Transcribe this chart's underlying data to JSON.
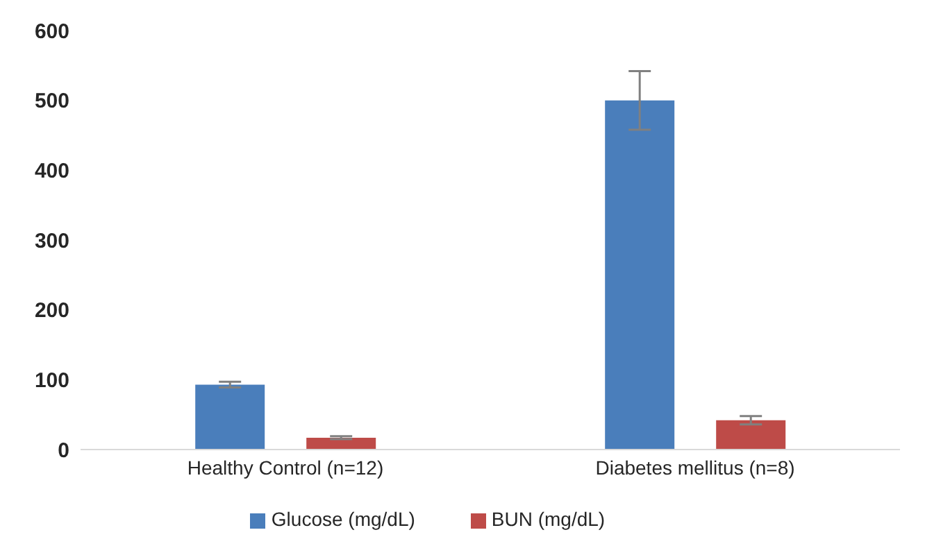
{
  "chart_data": {
    "type": "bar",
    "categories": [
      "Healthy Control (n=12)",
      "Diabetes mellitus (n=8)"
    ],
    "series": [
      {
        "name": "Glucose (mg/dL)",
        "color": "#4a7ebb",
        "values": [
          93,
          500
        ],
        "errors": [
          4,
          42
        ]
      },
      {
        "name": "BUN (mg/dL)",
        "color": "#be4b48",
        "values": [
          17,
          42
        ],
        "errors": [
          2,
          6
        ]
      }
    ],
    "ylim": [
      0,
      600
    ],
    "yticks": [
      0,
      100,
      200,
      300,
      400,
      500,
      600
    ],
    "grid": false,
    "legend": "bottom"
  }
}
